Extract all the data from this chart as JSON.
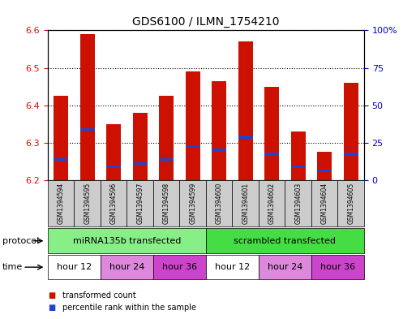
{
  "title": "GDS6100 / ILMN_1754210",
  "samples": [
    "GSM1394594",
    "GSM1394595",
    "GSM1394596",
    "GSM1394597",
    "GSM1394598",
    "GSM1394599",
    "GSM1394600",
    "GSM1394601",
    "GSM1394602",
    "GSM1394603",
    "GSM1394604",
    "GSM1394605"
  ],
  "bar_tops": [
    6.425,
    6.59,
    6.35,
    6.38,
    6.425,
    6.49,
    6.465,
    6.57,
    6.45,
    6.33,
    6.275,
    6.46
  ],
  "bar_bottom": 6.2,
  "percentile_values": [
    6.255,
    6.335,
    6.235,
    6.245,
    6.255,
    6.29,
    6.28,
    6.315,
    6.27,
    6.235,
    6.225,
    6.27
  ],
  "ylim": [
    6.2,
    6.6
  ],
  "y_left_ticks": [
    6.2,
    6.3,
    6.4,
    6.5,
    6.6
  ],
  "y_right_ticks": [
    0,
    25,
    50,
    75,
    100
  ],
  "bar_color": "#cc1100",
  "blue_color": "#2244cc",
  "protocol_groups": [
    {
      "label": "miRNA135b transfected",
      "start": 0,
      "end": 6,
      "color": "#88ee88"
    },
    {
      "label": "scrambled transfected",
      "start": 6,
      "end": 12,
      "color": "#44dd44"
    }
  ],
  "time_groups": [
    {
      "label": "hour 12",
      "start": 0,
      "end": 2,
      "color": "#ffffff"
    },
    {
      "label": "hour 24",
      "start": 2,
      "end": 4,
      "color": "#dd88dd"
    },
    {
      "label": "hour 36",
      "start": 4,
      "end": 6,
      "color": "#cc44cc"
    },
    {
      "label": "hour 12",
      "start": 6,
      "end": 8,
      "color": "#ffffff"
    },
    {
      "label": "hour 24",
      "start": 8,
      "end": 10,
      "color": "#dd88dd"
    },
    {
      "label": "hour 36",
      "start": 10,
      "end": 12,
      "color": "#cc44cc"
    }
  ],
  "legend_items": [
    {
      "label": "transformed count",
      "color": "#cc1100"
    },
    {
      "label": "percentile rank within the sample",
      "color": "#2244cc"
    }
  ],
  "protocol_label": "protocol",
  "time_label": "time",
  "bg_color": "#ffffff",
  "label_color_left": "#cc1100",
  "label_color_right": "#0000cc",
  "xtick_bg_color": "#cccccc",
  "plot_bg_color": "#ffffff"
}
